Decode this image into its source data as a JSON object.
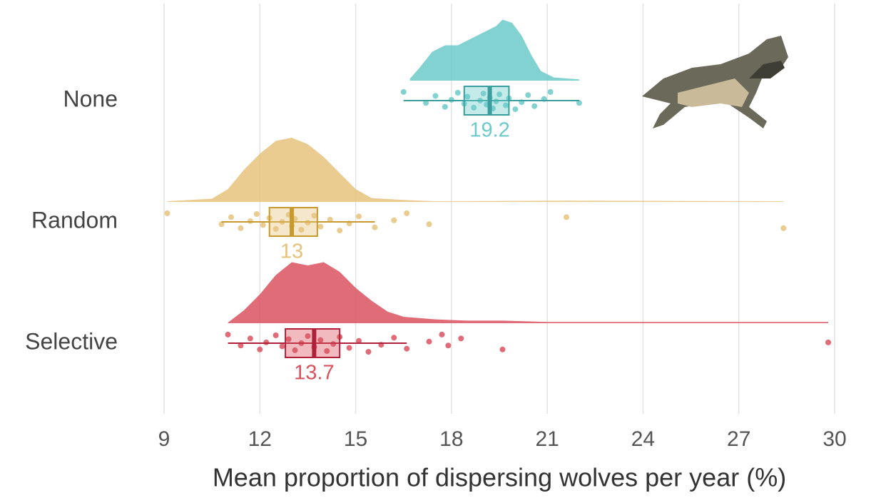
{
  "chart_data": {
    "type": "raincloud",
    "xlabel": "Mean proportion of dispersing wolves per year (%)",
    "xlim": [
      9,
      30
    ],
    "xticks": [
      9,
      12,
      15,
      18,
      21,
      24,
      27,
      30
    ],
    "grid": true,
    "categories": [
      "None",
      "Random",
      "Selective"
    ],
    "groups": [
      {
        "color": "#6ccaca",
        "dark": "#3a9e9e",
        "box": {
          "whisker_low": 16.5,
          "q1": 18.4,
          "median": 19.2,
          "q3": 19.8,
          "whisker_high": 22
        },
        "median_label": "19.2",
        "points": [
          16.5,
          17.2,
          17.5,
          17.8,
          18.0,
          18.2,
          18.4,
          18.5,
          18.7,
          18.9,
          19.0,
          19.1,
          19.2,
          19.3,
          19.4,
          19.5,
          19.7,
          19.8,
          20.0,
          20.2,
          20.4,
          20.6,
          20.9,
          21.1,
          22
        ],
        "density": {
          "x": [
            16.7,
            17.0,
            17.4,
            17.8,
            18.2,
            18.6,
            19.0,
            19.4,
            19.6,
            19.9,
            20.2,
            20.5,
            20.8,
            21.2,
            22
          ],
          "y": [
            0.03,
            0.2,
            0.45,
            0.55,
            0.55,
            0.65,
            0.75,
            0.85,
            0.95,
            0.9,
            0.7,
            0.4,
            0.15,
            0.05,
            0.02
          ]
        }
      },
      {
        "color": "#e6c27c",
        "dark": "#c8992f",
        "box": {
          "whisker_low": 10.8,
          "q1": 12.3,
          "median": 13,
          "q3": 13.8,
          "whisker_high": 15.6
        },
        "median_label": "13",
        "points": [
          9.1,
          10.8,
          11.1,
          11.4,
          11.7,
          11.9,
          12.1,
          12.3,
          12.5,
          12.7,
          12.9,
          13.0,
          13.1,
          13.3,
          13.5,
          13.7,
          13.9,
          14.2,
          14.5,
          14.8,
          15.1,
          15.6,
          16.2,
          16.6,
          17.3,
          21.6,
          28.4
        ],
        "density": {
          "x": [
            9.1,
            10.5,
            11.0,
            11.5,
            12.0,
            12.5,
            13.0,
            13.5,
            14.0,
            14.5,
            15.0,
            15.5,
            16.5,
            17.5,
            21.6,
            28.4
          ],
          "y": [
            0.01,
            0.05,
            0.2,
            0.5,
            0.75,
            0.95,
            1,
            0.9,
            0.7,
            0.45,
            0.2,
            0.06,
            0.03,
            0.01,
            0.02,
            0.01
          ]
        }
      },
      {
        "color": "#d9525f",
        "dark": "#b0203a",
        "box": {
          "whisker_low": 11,
          "q1": 12.8,
          "median": 13.7,
          "q3": 14.5,
          "whisker_high": 16.6
        },
        "median_label": "13.7",
        "points": [
          11.0,
          11.4,
          11.7,
          12.0,
          12.2,
          12.5,
          12.7,
          12.9,
          13.1,
          13.3,
          13.5,
          13.7,
          13.9,
          14.1,
          14.3,
          14.5,
          14.8,
          15.1,
          15.4,
          15.8,
          16.2,
          16.6,
          17.3,
          17.7,
          17.9,
          18.3,
          19.6,
          29.8
        ],
        "density": {
          "x": [
            11.0,
            11.5,
            12.0,
            12.5,
            13.0,
            13.5,
            14.0,
            14.5,
            15.0,
            15.5,
            16.0,
            16.5,
            17.5,
            18.5,
            19.6,
            21.0,
            29.8
          ],
          "y": [
            0.01,
            0.2,
            0.45,
            0.75,
            0.95,
            0.9,
            0.95,
            0.8,
            0.55,
            0.35,
            0.18,
            0.1,
            0.06,
            0.04,
            0.04,
            0.02,
            0.02
          ]
        }
      }
    ]
  }
}
